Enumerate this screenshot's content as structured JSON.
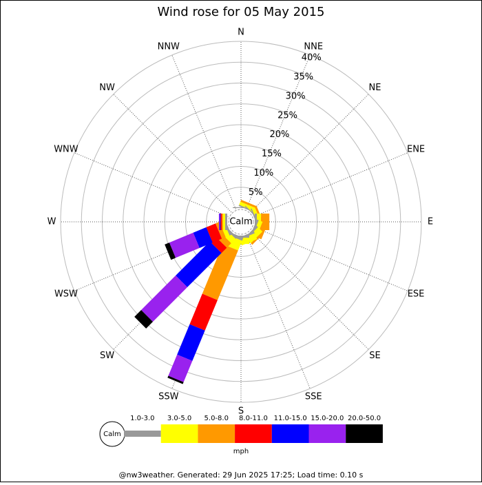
{
  "chart_data": {
    "type": "windrose",
    "title": "Wind rose for 05 May 2015",
    "calm_label": "Calm",
    "directions": [
      "N",
      "NNE",
      "NE",
      "ENE",
      "E",
      "ESE",
      "SE",
      "SSE",
      "S",
      "SSW",
      "SW",
      "WSW",
      "W",
      "WNW",
      "NW",
      "NNW"
    ],
    "rlim": [
      0,
      40
    ],
    "rticks": [
      {
        "value": 5,
        "label": "5%"
      },
      {
        "value": 10,
        "label": "10%"
      },
      {
        "value": 15,
        "label": "15%"
      },
      {
        "value": 20,
        "label": "20%"
      },
      {
        "value": 25,
        "label": "25%"
      },
      {
        "value": 30,
        "label": "30%"
      },
      {
        "value": 35,
        "label": "35%"
      },
      {
        "value": 40,
        "label": "40%"
      }
    ],
    "series": [
      {
        "name": "1.0-3.0",
        "color": "#999999",
        "values": [
          0.2,
          0.3,
          0.2,
          0.3,
          0.5,
          0.5,
          0.5,
          0.5,
          0.5,
          0.8,
          0.5,
          0.5,
          0.5,
          0,
          0,
          0
        ]
      },
      {
        "name": "3.0-5.0",
        "color": "#ffff00",
        "values": [
          0,
          0.8,
          0.3,
          0.8,
          1,
          1,
          1.5,
          1.5,
          1.5,
          2.5,
          1.5,
          1,
          0.5,
          0,
          0,
          0
        ]
      },
      {
        "name": "5.0-8.0",
        "color": "#ff9900",
        "values": [
          0,
          0.5,
          0,
          0.5,
          2,
          1.3,
          0.5,
          0,
          0,
          12.9,
          1.5,
          1,
          0.3,
          0,
          0,
          0
        ]
      },
      {
        "name": "8.0-11.0",
        "color": "#ff0000",
        "values": [
          0,
          0,
          0,
          0,
          0,
          0,
          0,
          0,
          0,
          7.9,
          1.8,
          2.4,
          0.3,
          0,
          0,
          0
        ]
      },
      {
        "name": "11.0-15.0",
        "color": "#0000ff",
        "values": [
          0,
          0,
          0,
          0,
          0,
          0,
          0,
          0,
          0,
          7.9,
          11.6,
          3.4,
          0.2,
          0,
          0,
          0
        ]
      },
      {
        "name": "15.0-20.0",
        "color": "#9922ee",
        "values": [
          0,
          0,
          0,
          0,
          0,
          0,
          0,
          0,
          0,
          5.5,
          11.7,
          6.2,
          0.2,
          0,
          0,
          0
        ]
      },
      {
        "name": "20.0-50.0",
        "color": "#000000",
        "values": [
          0,
          0,
          0,
          0,
          0,
          0,
          0,
          0,
          0,
          0.5,
          2.3,
          1.2,
          0,
          0,
          0,
          0
        ]
      }
    ],
    "legend_unit": "mph",
    "footer": "@nw3weather.  Generated: 29 Jun 2025 17:25; Load time: 0.10 s"
  }
}
